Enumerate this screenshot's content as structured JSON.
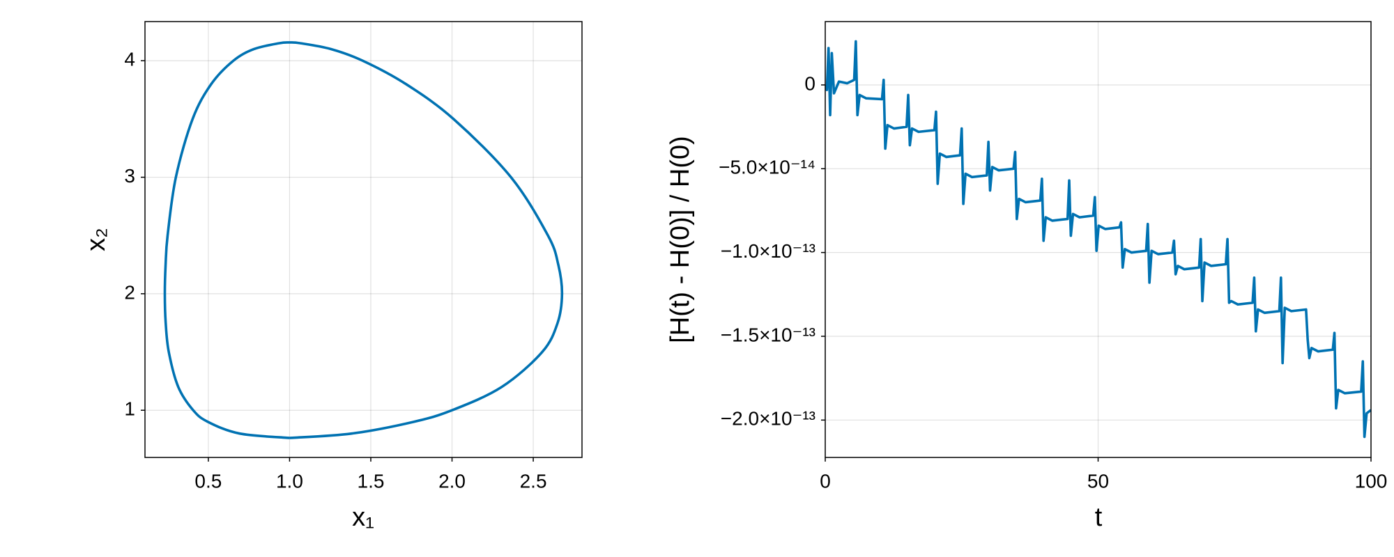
{
  "chart_data": [
    {
      "type": "line",
      "x_label": "x₁",
      "y_label": "x₂",
      "color": "#0072b2",
      "grid": true,
      "xlim": [
        0.11,
        2.8
      ],
      "ylim": [
        0.595,
        4.336
      ],
      "xticks": [
        0.5,
        {
          "value": 1,
          "label": "1.0"
        },
        1.5,
        {
          "value": 2,
          "label": "2.0"
        },
        2.5
      ],
      "yticks": [
        1,
        2,
        3,
        4
      ],
      "x": [
        1,
        1.382,
        1.762,
        2.0,
        2.306,
        2.555,
        2.65,
        2.677,
        2.654,
        2.5905,
        2.363,
        2.009,
        1.716,
        1.4505,
        1.255,
        1.068,
        1,
        0.935,
        0.781,
        0.654,
        0.518,
        0.4032,
        0.3002,
        0.2493,
        0.237,
        0.2322,
        0.2375,
        0.2566,
        0.315,
        0.407,
        0.498,
        0.693,
        1
      ],
      "values": [
        0.762,
        0.8,
        0.9,
        1.0,
        1.2,
        1.5,
        1.75,
        2.0,
        2.25,
        2.5,
        3.0,
        3.5,
        3.8,
        4.0,
        4.1,
        4.15,
        4.157,
        4.15,
        4.1,
        4.0,
        3.8,
        3.5,
        3.0,
        2.5,
        2.25,
        2.0,
        1.75,
        1.5,
        1.2,
        1.0,
        0.9,
        0.8,
        0.762
      ]
    },
    {
      "type": "line",
      "x_label": "t",
      "y_label": "[H(t) - H(0)] / H(0)",
      "color": "#0072b2",
      "grid": true,
      "xlim": [
        0,
        100
      ],
      "ylim": [
        -2.223e-13,
        3.78e-14
      ],
      "xticks": [
        0,
        50,
        100
      ],
      "yticks": [
        0,
        {
          "value": -5e-14,
          "label": "−5.0×10⁻¹⁴"
        },
        {
          "value": -1e-13,
          "label": "−1.0×10⁻¹³"
        },
        {
          "value": -1.5e-13,
          "label": "−1.5×10⁻¹³"
        },
        {
          "value": -2e-13,
          "label": "−2.0×10⁻¹³"
        }
      ],
      "x": [
        0,
        0.3,
        0.6,
        0.9,
        1.2,
        1.6,
        2.5,
        4,
        5.3,
        5.6,
        5.9,
        6.3,
        7.5,
        10.4,
        10.7,
        11,
        11.4,
        12.6,
        14.9,
        15.2,
        15.5,
        15.9,
        17.1,
        20,
        20.3,
        20.6,
        21,
        22.2,
        24.7,
        25,
        25.3,
        25.7,
        26.9,
        29.6,
        29.9,
        30.2,
        30.6,
        31.8,
        34.5,
        34.8,
        35.1,
        35.5,
        36.7,
        39.4,
        39.7,
        40,
        40.4,
        41.6,
        44.4,
        44.7,
        45,
        45.4,
        46.6,
        49.1,
        49.4,
        49.7,
        50.1,
        51.3,
        53.9,
        54.2,
        54.5,
        54.9,
        56.1,
        58.8,
        59.1,
        59.4,
        59.8,
        61,
        63.6,
        63.9,
        64.2,
        64.6,
        65.8,
        68.5,
        68.8,
        69.1,
        69.5,
        70.7,
        73.4,
        73.7,
        74,
        74.4,
        75.6,
        78.3,
        78.6,
        78.9,
        79.3,
        80.5,
        83.2,
        83.5,
        83.8,
        84.2,
        85.4,
        88.1,
        88.4,
        88.7,
        89.1,
        90.3,
        93,
        93.3,
        93.6,
        94,
        95.2,
        98.2,
        98.5,
        98.8,
        99.2,
        100
      ],
      "values": [
        0,
        -3e-15,
        2.2e-14,
        -1.8e-14,
        1.9e-14,
        -5e-15,
        2e-15,
        1e-15,
        3e-15,
        2.6e-14,
        -1.8e-14,
        -6e-15,
        -8e-15,
        -8.5e-15,
        3e-15,
        -3.8e-14,
        -2.4e-14,
        -2.6e-14,
        -2.5e-14,
        -6e-15,
        -3.6e-14,
        -2.6e-14,
        -2.8e-14,
        -2.7e-14,
        -1.6e-14,
        -5.9e-14,
        -4.1e-14,
        -4.3e-14,
        -4.2e-14,
        -2.6e-14,
        -7.1e-14,
        -5.3e-14,
        -5.5e-14,
        -5.4e-14,
        -3.4e-14,
        -6.3e-14,
        -4.9e-14,
        -5.1e-14,
        -5e-14,
        -4e-14,
        -8e-14,
        -6.8e-14,
        -7e-14,
        -6.9e-14,
        -5.6e-14,
        -9.3e-14,
        -7.9e-14,
        -8.1e-14,
        -8e-14,
        -5.7e-14,
        -9e-14,
        -7.7e-14,
        -7.9e-14,
        -7.8e-14,
        -6.7e-14,
        -9.9e-14,
        -8.4e-14,
        -8.6e-14,
        -8.5e-14,
        -8.2e-14,
        -1.09e-13,
        -9.8e-14,
        -1e-13,
        -9.9e-14,
        -8.3e-14,
        -1.18e-13,
        -9.9e-14,
        -1.01e-13,
        -1e-13,
        -9.3e-14,
        -1.13e-13,
        -1.08e-13,
        -1.1e-13,
        -1.09e-13,
        -9.2e-14,
        -1.29e-13,
        -1.06e-13,
        -1.08e-13,
        -1.07e-13,
        -9.2e-14,
        -1.3e-13,
        -1.29e-13,
        -1.31e-13,
        -1.3e-13,
        -1.15e-13,
        -1.47e-13,
        -1.34e-13,
        -1.36e-13,
        -1.35e-13,
        -1.15e-13,
        -1.66e-13,
        -1.33e-13,
        -1.35e-13,
        -1.34e-13,
        -1.52e-13,
        -1.63e-13,
        -1.57e-13,
        -1.59e-13,
        -1.58e-13,
        -1.48e-13,
        -1.93e-13,
        -1.82e-13,
        -1.84e-13,
        -1.83e-13,
        -1.65e-13,
        -2.1e-13,
        -1.96e-13,
        -1.94e-13
      ]
    }
  ]
}
